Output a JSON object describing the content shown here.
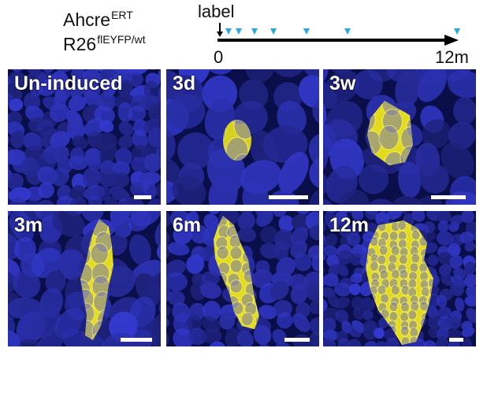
{
  "genotype": {
    "line1_base": "Ahcre",
    "line1_sup": "ERT",
    "line2_base": "R26",
    "line2_sup": "flEYFP/wt"
  },
  "timeline": {
    "label": "label",
    "start": "0",
    "end": "12m",
    "axis_color": "#000000",
    "marker_color": "#2aa8e0"
  },
  "panels": [
    {
      "label": "Un-induced",
      "clone": "none"
    },
    {
      "label": "3d",
      "clone": "single-cell"
    },
    {
      "label": "3w",
      "clone": "small"
    },
    {
      "label": "3m",
      "clone": "elongated"
    },
    {
      "label": "6m",
      "clone": "elongated-large"
    },
    {
      "label": "12m",
      "clone": "large"
    }
  ],
  "colors": {
    "nucleus": "#2a2fb8",
    "background": "#0a0f4a",
    "clone": "#e8e020",
    "scalebar": "#ffffff"
  }
}
